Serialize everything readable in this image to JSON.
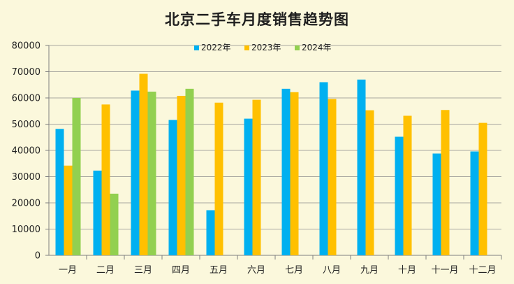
{
  "chart_data": {
    "type": "bar",
    "title": "北京二手车月度销售趋势图",
    "xlabel": "",
    "ylabel": "",
    "ylim": [
      0,
      80000
    ],
    "ytick_step": 10000,
    "yticks": [
      "0",
      "10000",
      "20000",
      "30000",
      "40000",
      "50000",
      "60000",
      "70000",
      "80000"
    ],
    "grid": true,
    "legend_position": "top-center",
    "categories": [
      "一月",
      "二月",
      "三月",
      "四月",
      "五月",
      "六月",
      "七月",
      "八月",
      "九月",
      "十月",
      "十一月",
      "十二月"
    ],
    "series": [
      {
        "name": "2022年",
        "color": "#00b0f0",
        "values": [
          48200,
          32300,
          62800,
          51600,
          17200,
          52100,
          63500,
          66000,
          67000,
          45200,
          38800,
          39600
        ]
      },
      {
        "name": "2023年",
        "color": "#ffc000",
        "values": [
          34200,
          57500,
          69200,
          60800,
          58200,
          59300,
          62200,
          59600,
          55300,
          53200,
          55400,
          50500
        ]
      },
      {
        "name": "2024年",
        "color": "#92d050",
        "values": [
          60000,
          23500,
          62400,
          63500,
          null,
          null,
          null,
          null,
          null,
          null,
          null,
          null
        ]
      }
    ]
  }
}
